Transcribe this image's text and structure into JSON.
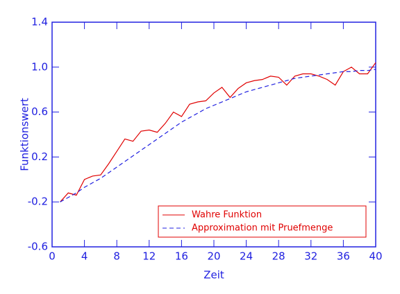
{
  "chart_data": {
    "type": "line",
    "x_label": "Zeit",
    "y_label": "Funktionswert",
    "x": [
      1,
      2,
      3,
      4,
      5,
      6,
      7,
      8,
      9,
      10,
      11,
      12,
      13,
      14,
      15,
      16,
      17,
      18,
      19,
      20,
      21,
      22,
      23,
      24,
      25,
      26,
      27,
      28,
      29,
      30,
      31,
      32,
      33,
      34,
      35,
      36,
      37,
      38,
      39,
      40
    ],
    "series": [
      {
        "name": "Wahre Funktion",
        "color": "#e00000",
        "dash": false,
        "values": [
          -0.2,
          -0.12,
          -0.14,
          0.0,
          0.03,
          0.04,
          0.14,
          0.25,
          0.36,
          0.34,
          0.43,
          0.44,
          0.42,
          0.5,
          0.6,
          0.56,
          0.67,
          0.69,
          0.7,
          0.77,
          0.82,
          0.73,
          0.81,
          0.86,
          0.88,
          0.89,
          0.92,
          0.91,
          0.84,
          0.92,
          0.94,
          0.94,
          0.92,
          0.89,
          0.84,
          0.96,
          1.0,
          0.94,
          0.94,
          1.04
        ]
      },
      {
        "name": "Approximation mit Pruefmenge",
        "color": "#2020e0",
        "dash": true,
        "values": [
          -0.2,
          -0.16,
          -0.12,
          -0.07,
          -0.03,
          0.01,
          0.06,
          0.11,
          0.16,
          0.21,
          0.26,
          0.31,
          0.36,
          0.41,
          0.46,
          0.51,
          0.55,
          0.59,
          0.63,
          0.66,
          0.69,
          0.72,
          0.75,
          0.78,
          0.8,
          0.82,
          0.84,
          0.86,
          0.88,
          0.9,
          0.91,
          0.92,
          0.93,
          0.94,
          0.95,
          0.96,
          0.96,
          0.97,
          0.97,
          0.98
        ]
      }
    ],
    "xlim": [
      0,
      40
    ],
    "xticks": [
      0,
      4,
      8,
      12,
      16,
      20,
      24,
      28,
      32,
      36,
      40
    ],
    "ylim": [
      -0.6,
      1.4
    ],
    "yticks": [
      -0.6,
      -0.2,
      0.2,
      0.6,
      {
        "value": 1,
        "label": "1.0"
      },
      1.4
    ],
    "axis_color": "#2020e0",
    "legend": "lower right"
  }
}
